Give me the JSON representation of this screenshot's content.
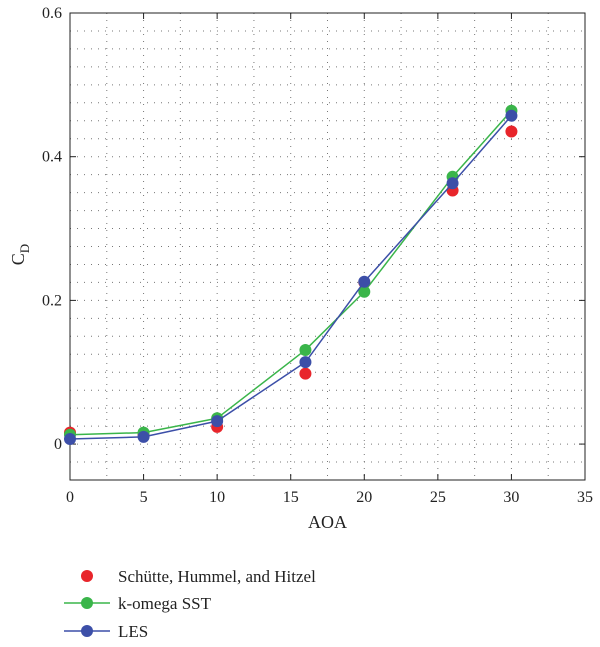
{
  "chart_data": {
    "type": "line",
    "xlabel": "AOA",
    "ylabel": "C",
    "ylabel_sub": "D",
    "xlim": [
      0,
      35
    ],
    "ylim": [
      -0.05,
      0.6
    ],
    "xticks": [
      0,
      5,
      10,
      15,
      20,
      25,
      30,
      35
    ],
    "yticks": [
      0,
      0.2,
      0.4,
      0.6
    ],
    "xtick_labels": [
      "0",
      "5",
      "10",
      "15",
      "20",
      "25",
      "30",
      "35"
    ],
    "ytick_labels": [
      "0",
      "0.2",
      "0.4",
      "0.6"
    ],
    "grid": true,
    "legend_position": "bottom",
    "series": [
      {
        "name": "Schütte, Hummel, and Hitzel",
        "color": "#e8252b",
        "style": "markers",
        "x": [
          0,
          5,
          10,
          16,
          20,
          26,
          30
        ],
        "y": [
          0.016,
          0.013,
          0.024,
          0.098,
          0.225,
          0.353,
          0.435
        ]
      },
      {
        "name": "k-omega SST",
        "color": "#3ab54a",
        "style": "line+markers",
        "x": [
          0,
          5,
          10,
          16,
          20,
          26,
          30
        ],
        "y": [
          0.013,
          0.016,
          0.036,
          0.131,
          0.212,
          0.372,
          0.464
        ]
      },
      {
        "name": "LES",
        "color": "#3c4fa8",
        "style": "line+markers",
        "x": [
          0,
          5,
          10,
          16,
          20,
          26,
          30
        ],
        "y": [
          0.007,
          0.01,
          0.032,
          0.114,
          0.226,
          0.363,
          0.457
        ]
      }
    ]
  }
}
